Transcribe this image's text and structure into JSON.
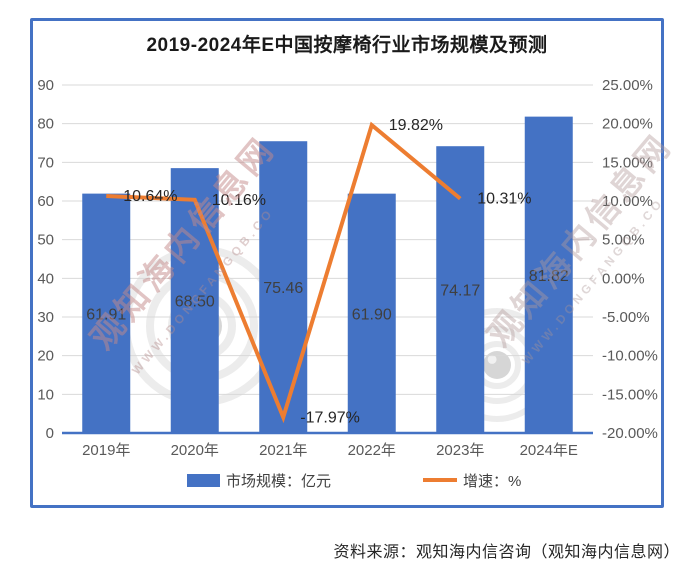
{
  "title": "2019-2024年E中国按摩椅行业市场规模及预测",
  "source_note": "资料来源：观知海内信咨询（观知海内信息网）",
  "watermark": {
    "text": "观知海内信息网",
    "url_fragment": "WWW.DONGFANGQB.CO"
  },
  "colors": {
    "bar": "#4472C4",
    "line": "#ED7D31",
    "frame_border": "#4472C4",
    "grid": "#D9D9D9",
    "axis_line": "#4472C4",
    "axis_text": "#595959",
    "bar_label_text": "#3F3F3F",
    "line_label_text": "#262626"
  },
  "legend": {
    "items": [
      {
        "label": "市场规模：亿元",
        "swatch": "bar",
        "color": "#4472C4"
      },
      {
        "label": "增速：%",
        "swatch": "line",
        "color": "#ED7D31"
      }
    ]
  },
  "chart_data": {
    "type": "bar",
    "subtype": "bar+line combo with dual y-axes",
    "title": "2019-2024年E中国按摩椅行业市场规模及预测",
    "categories": [
      "2019年",
      "2020年",
      "2021年",
      "2022年",
      "2023年",
      "2024年E"
    ],
    "series": [
      {
        "name": "市场规模：亿元",
        "type": "bar",
        "axis": "left",
        "color": "#4472C4",
        "values": [
          61.91,
          68.5,
          75.46,
          61.9,
          74.17,
          81.82
        ],
        "value_labels": [
          "61.91",
          "68.50",
          "75.46",
          "61.90",
          "74.17",
          "81.82"
        ]
      },
      {
        "name": "增速：%",
        "type": "line",
        "axis": "right",
        "color": "#ED7D31",
        "values": [
          10.64,
          10.16,
          -17.97,
          19.82,
          10.31,
          null
        ],
        "value_labels": [
          "10.64%",
          "10.16%",
          "-17.97%",
          "19.82%",
          "10.31%",
          null
        ]
      }
    ],
    "left_axis": {
      "min": 0,
      "max": 90,
      "tick_values": [
        0,
        10,
        20,
        30,
        40,
        50,
        60,
        70,
        80,
        90
      ],
      "tick_labels": [
        "0",
        "10",
        "20",
        "30",
        "40",
        "50",
        "60",
        "70",
        "80",
        "90"
      ]
    },
    "right_axis": {
      "min": -20,
      "max": 25,
      "tick_values": [
        -20,
        -15,
        -10,
        -5,
        0,
        5,
        10,
        15,
        20,
        25
      ],
      "tick_labels": [
        "-20.00%",
        "-15.00%",
        "-10.00%",
        "-5.00%",
        "0.00%",
        "5.00%",
        "10.00%",
        "15.00%",
        "20.00%",
        "25.00%"
      ]
    },
    "grid": true,
    "legend_position": "bottom"
  }
}
